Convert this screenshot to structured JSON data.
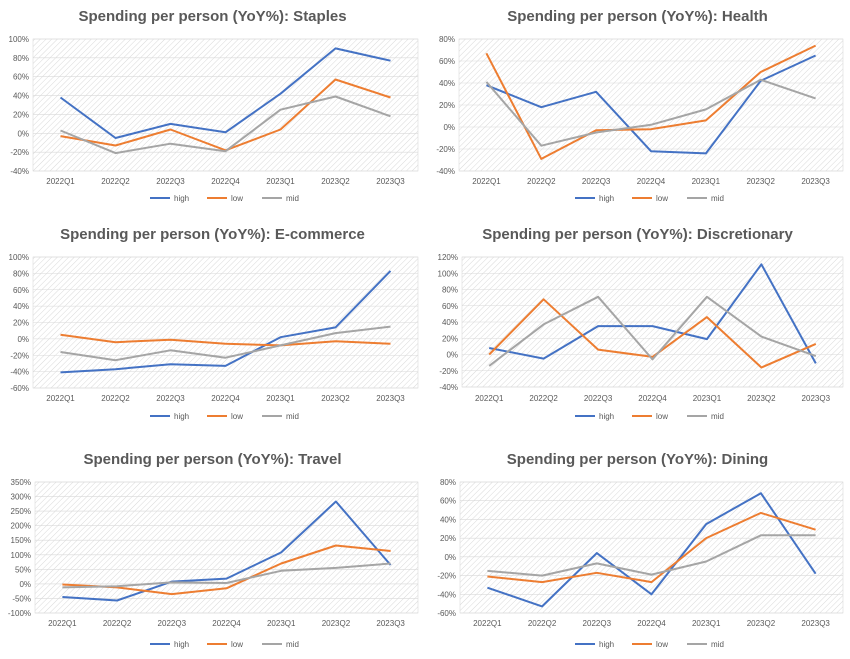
{
  "categories": [
    "2022Q1",
    "2022Q2",
    "2022Q3",
    "2022Q4",
    "2023Q1",
    "2023Q2",
    "2023Q3"
  ],
  "colors": {
    "high": "#4472C4",
    "low": "#ED7D31",
    "mid": "#A5A5A5"
  },
  "chart_data": [
    {
      "type": "line",
      "title": "Spending per person (YoY%): Staples",
      "categories": [
        "2022Q1",
        "2022Q2",
        "2022Q3",
        "2022Q4",
        "2023Q1",
        "2023Q2",
        "2023Q3"
      ],
      "ylim": [
        -40,
        100
      ],
      "ystep": 20,
      "yticks": [
        "-40%",
        "-20%",
        "0%",
        "20%",
        "40%",
        "60%",
        "80%",
        "100%"
      ],
      "legend": "bottom",
      "grid": "hatched plot area",
      "series": [
        {
          "name": "high",
          "values": [
            38,
            -5,
            10,
            1,
            42,
            90,
            77
          ]
        },
        {
          "name": "low",
          "values": [
            -3,
            -13,
            4,
            -18,
            4,
            57,
            38
          ]
        },
        {
          "name": "mid",
          "values": [
            3,
            -21,
            -11,
            -19,
            25,
            39,
            18
          ]
        }
      ]
    },
    {
      "type": "line",
      "title": "Spending per person (YoY%): Health",
      "categories": [
        "2022Q1",
        "2022Q2",
        "2022Q3",
        "2022Q4",
        "2023Q1",
        "2023Q2",
        "2023Q3"
      ],
      "ylim": [
        -40,
        80
      ],
      "ystep": 20,
      "yticks": [
        "-40%",
        "-20%",
        "0%",
        "20%",
        "40%",
        "60%",
        "80%"
      ],
      "legend": "bottom",
      "grid": "hatched plot area",
      "series": [
        {
          "name": "high",
          "values": [
            38,
            18,
            32,
            -22,
            -24,
            42,
            65
          ]
        },
        {
          "name": "low",
          "values": [
            67,
            -29,
            -3,
            -2,
            6,
            50,
            74
          ]
        },
        {
          "name": "mid",
          "values": [
            41,
            -17,
            -5,
            2,
            16,
            43,
            26
          ]
        }
      ]
    },
    {
      "type": "line",
      "title": "Spending per person (YoY%): E-commerce",
      "categories": [
        "2022Q1",
        "2022Q2",
        "2022Q3",
        "2022Q4",
        "2023Q1",
        "2023Q2",
        "2023Q3"
      ],
      "ylim": [
        -60,
        100
      ],
      "ystep": 20,
      "yticks": [
        "-60%",
        "-40%",
        "-20%",
        "0%",
        "20%",
        "40%",
        "60%",
        "80%",
        "100%"
      ],
      "legend": "bottom",
      "grid": "hatched plot area",
      "series": [
        {
          "name": "high",
          "values": [
            -41,
            -37,
            -31,
            -33,
            2,
            14,
            83
          ]
        },
        {
          "name": "low",
          "values": [
            5,
            -4,
            -1,
            -6,
            -8,
            -3,
            -6
          ]
        },
        {
          "name": "mid",
          "values": [
            -16,
            -26,
            -14,
            -23,
            -8,
            7,
            15
          ]
        }
      ]
    },
    {
      "type": "line",
      "title": "Spending per person (YoY%): Discretionary",
      "categories": [
        "2022Q1",
        "2022Q2",
        "2022Q3",
        "2022Q4",
        "2023Q1",
        "2023Q2",
        "2023Q3"
      ],
      "ylim": [
        -40,
        120
      ],
      "ystep": 20,
      "yticks": [
        "-40%",
        "-20%",
        "0%",
        "20%",
        "40%",
        "60%",
        "80%",
        "100%",
        "120%"
      ],
      "legend": "bottom",
      "grid": "hatched plot area",
      "series": [
        {
          "name": "high",
          "values": [
            8,
            -5,
            35,
            35,
            19,
            111,
            -11
          ]
        },
        {
          "name": "low",
          "values": [
            0,
            68,
            6,
            -3,
            46,
            -16,
            13
          ]
        },
        {
          "name": "mid",
          "values": [
            -14,
            37,
            71,
            -6,
            71,
            22,
            -2
          ]
        }
      ]
    },
    {
      "type": "line",
      "title": "Spending per person (YoY%): Travel",
      "categories": [
        "2022Q1",
        "2022Q2",
        "2022Q3",
        "2022Q4",
        "2023Q1",
        "2023Q2",
        "2023Q3"
      ],
      "ylim": [
        -100,
        350
      ],
      "ystep": 50,
      "yticks": [
        "-100%",
        "-50%",
        "0%",
        "50%",
        "100%",
        "150%",
        "200%",
        "250%",
        "300%",
        "350%"
      ],
      "legend": "bottom",
      "grid": "hatched plot area",
      "series": [
        {
          "name": "high",
          "values": [
            -45,
            -57,
            8,
            18,
            108,
            283,
            65
          ]
        },
        {
          "name": "low",
          "values": [
            -2,
            -12,
            -35,
            -15,
            70,
            132,
            113
          ]
        },
        {
          "name": "mid",
          "values": [
            -12,
            -8,
            5,
            3,
            45,
            55,
            70
          ]
        }
      ]
    },
    {
      "type": "line",
      "title": "Spending per person (YoY%): Dining",
      "categories": [
        "2022Q1",
        "2022Q2",
        "2022Q3",
        "2022Q4",
        "2023Q1",
        "2023Q2",
        "2023Q3"
      ],
      "ylim": [
        -60,
        80
      ],
      "ystep": 20,
      "yticks": [
        "-60%",
        "-40%",
        "-20%",
        "0%",
        "20%",
        "40%",
        "60%",
        "80%"
      ],
      "legend": "bottom",
      "grid": "hatched plot area",
      "series": [
        {
          "name": "high",
          "values": [
            -33,
            -53,
            4,
            -40,
            35,
            68,
            -18
          ]
        },
        {
          "name": "low",
          "values": [
            -21,
            -27,
            -17,
            -27,
            20,
            47,
            29
          ]
        },
        {
          "name": "mid",
          "values": [
            -15,
            -20,
            -7,
            -19,
            -5,
            23,
            23
          ]
        }
      ]
    }
  ]
}
